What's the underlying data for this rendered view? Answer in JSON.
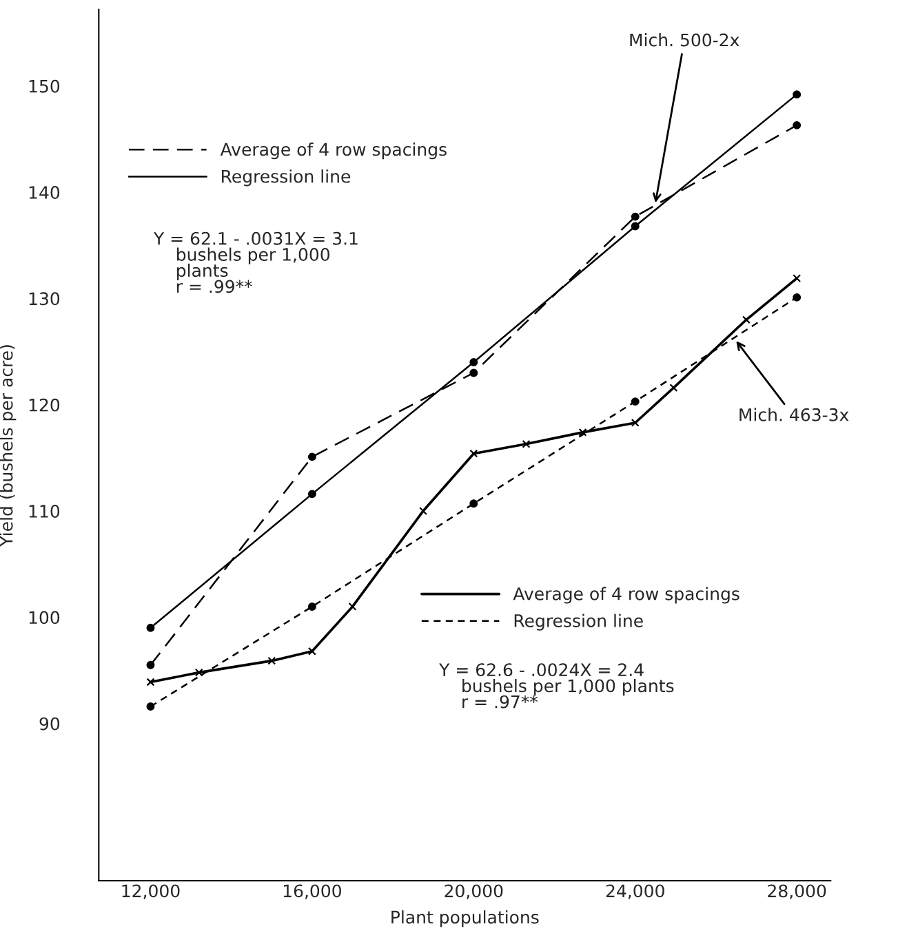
{
  "chart_data": {
    "type": "line",
    "xlabel": "Plant populations",
    "ylabel": "Yield (bushels per acre)",
    "xlim": [
      10718,
      28838
    ],
    "ylim": [
      75.2,
      157.2
    ],
    "xticks": [
      {
        "value": 12000,
        "label": "12,000"
      },
      {
        "value": 16000,
        "label": "16,000"
      },
      {
        "value": 20000,
        "label": "20,000"
      },
      {
        "value": 24000,
        "label": "24,000"
      },
      {
        "value": 28000,
        "label": "28,000"
      }
    ],
    "yticks": [
      90,
      100,
      110,
      120,
      130,
      140,
      150
    ],
    "grid": false,
    "legend": "top left",
    "series": [
      {
        "name": "Average of 4 row spacings",
        "color": "#000000",
        "line_style": "dashed",
        "marker": "circle",
        "x": [
          12000,
          16000,
          20000,
          24000,
          28000
        ],
        "values": [
          95.5,
          115.1,
          123.0,
          137.7,
          146.3
        ]
      },
      {
        "name": "Regression line",
        "color": "#000000",
        "line_style": "solid",
        "marker": "circle",
        "x": [
          12000,
          16000,
          20000,
          24000,
          28000
        ],
        "values": [
          99.0,
          111.6,
          124.0,
          136.8,
          149.2
        ]
      },
      {
        "name": "Average of 4 row spacings",
        "color": "#000000",
        "line_style": "solid",
        "marker": "cross",
        "x": [
          12000,
          13200,
          15000,
          16000,
          17000,
          18750,
          20000,
          21300,
          22700,
          24000,
          24950,
          26750,
          28000
        ],
        "values": [
          93.9,
          94.8,
          95.9,
          96.8,
          101.0,
          110.0,
          115.4,
          116.3,
          117.4,
          118.3,
          121.6,
          128.0,
          131.9
        ]
      },
      {
        "name": "Regression line",
        "color": "#000000",
        "line_style": "dotted",
        "marker": "circle",
        "x": [
          12000,
          16000,
          20000,
          24000,
          28000
        ],
        "values": [
          91.6,
          101.0,
          110.7,
          120.3,
          130.1
        ]
      }
    ],
    "annotations": [
      "Y = 62.1 - .0031X = 3.1\n    bushels per 1,000\n    plants\n    r = .99**",
      "Y = 62.6 - .0024X = 2.4\n    bushels per 1,000 plants\n    r = .97**",
      {
        "text": "Mich. 500-2x",
        "x": 24500,
        "y": 139.0
      },
      {
        "text": "Mich. 463-3x",
        "x": 26500,
        "y": 126.0
      }
    ]
  }
}
